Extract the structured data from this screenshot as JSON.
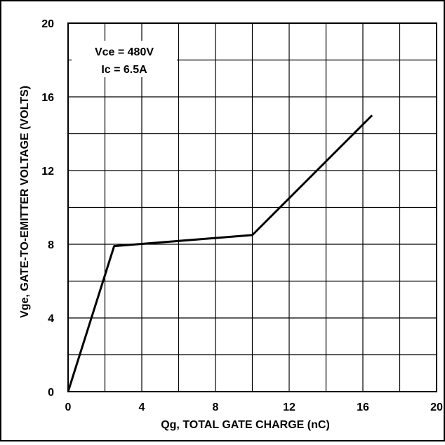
{
  "chart_data": {
    "type": "line",
    "xlabel": "Qg, TOTAL GATE CHARGE (nC)",
    "ylabel": "Vge, GATE-TO-EMITTER VOLTAGE (VOLTS)",
    "xlim": [
      0,
      20
    ],
    "ylim": [
      0,
      20
    ],
    "xticks": [
      0,
      4,
      8,
      12,
      16,
      20
    ],
    "yticks": [
      0,
      4,
      8,
      12,
      16,
      20
    ],
    "grid": true,
    "grid_step": 2,
    "legend": "none",
    "annotation": [
      "Vce = 480V",
      "Ic = 6.5A"
    ],
    "series": [
      {
        "x": [
          0,
          2.5,
          7.5,
          10,
          16.5
        ],
        "y": [
          0,
          7.9,
          8.3,
          8.5,
          15.0
        ]
      }
    ],
    "colors": {
      "line": "#000000",
      "grid": "#000000",
      "background": "#ffffff"
    }
  }
}
